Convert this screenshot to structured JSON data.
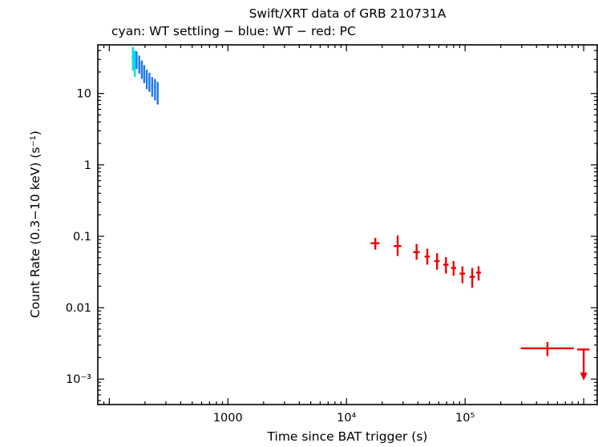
{
  "figure": {
    "background": "#ffffff"
  },
  "chart_data": {
    "type": "scatter",
    "title": "Swift/XRT data of GRB 210731A",
    "subtitle": "cyan: WT settling − blue: WT − red: PC",
    "xlabel": "Time since BAT trigger (s)",
    "ylabel": "Count Rate (0.3−10 keV) (s⁻¹)",
    "xscale": "log",
    "yscale": "log",
    "xlim": [
      80,
      1300000
    ],
    "ylim": [
      0.00044,
      48
    ],
    "grid": false,
    "frame_color": "#000000",
    "x_ticks": [
      {
        "value": 1000,
        "label": "1000"
      },
      {
        "value": 10000,
        "label": "10⁴"
      },
      {
        "value": 100000,
        "label": "10⁵"
      }
    ],
    "y_ticks": [
      {
        "value": 10,
        "label": "10"
      },
      {
        "value": 1,
        "label": "1"
      },
      {
        "value": 0.1,
        "label": "0.1"
      },
      {
        "value": 0.01,
        "label": "0.01"
      },
      {
        "value": 0.001,
        "label": "10⁻³"
      }
    ],
    "series": [
      {
        "name": "WT settling",
        "color": "#00dcf0",
        "points": [
          {
            "t": 158,
            "t_err": [
              4,
              4
            ],
            "rate": 32,
            "rate_err": [
              11,
              13
            ]
          },
          {
            "t": 164,
            "t_err": [
              4,
              4
            ],
            "rate": 28,
            "rate_err": [
              11,
              12
            ]
          }
        ]
      },
      {
        "name": "WT",
        "color": "#1e78e8",
        "points": [
          {
            "t": 170,
            "t_err": [
              3,
              3
            ],
            "rate": 30,
            "rate_err": [
              8,
              9
            ]
          },
          {
            "t": 179,
            "t_err": [
              3,
              3
            ],
            "rate": 26,
            "rate_err": [
              7,
              8
            ]
          },
          {
            "t": 188,
            "t_err": [
              3,
              3
            ],
            "rate": 22,
            "rate_err": [
              6,
              7
            ]
          },
          {
            "t": 197,
            "t_err": [
              3,
              3
            ],
            "rate": 19,
            "rate_err": [
              5,
              6
            ]
          },
          {
            "t": 207,
            "t_err": [
              4,
              4
            ],
            "rate": 16.5,
            "rate_err": [
              5,
              5
            ]
          },
          {
            "t": 218,
            "t_err": [
              4,
              4
            ],
            "rate": 14.5,
            "rate_err": [
              4,
              5
            ]
          },
          {
            "t": 230,
            "t_err": [
              5,
              5
            ],
            "rate": 13,
            "rate_err": [
              4,
              4
            ]
          },
          {
            "t": 243,
            "t_err": [
              5,
              5
            ],
            "rate": 12,
            "rate_err": [
              4,
              4
            ]
          },
          {
            "t": 256,
            "t_err": [
              5,
              5
            ],
            "rate": 10.5,
            "rate_err": [
              3.5,
              4
            ]
          }
        ]
      },
      {
        "name": "PC",
        "color": "#ee0000",
        "points": [
          {
            "t": 17500,
            "t_err": [
              1500,
              1500
            ],
            "rate": 0.08,
            "rate_err": [
              0.015,
              0.015
            ]
          },
          {
            "t": 27000,
            "t_err": [
              2000,
              2000
            ],
            "rate": 0.073,
            "rate_err": [
              0.02,
              0.03
            ]
          },
          {
            "t": 39000,
            "t_err": [
              2500,
              2500
            ],
            "rate": 0.06,
            "rate_err": [
              0.013,
              0.018
            ]
          },
          {
            "t": 48000,
            "t_err": [
              2500,
              2500
            ],
            "rate": 0.052,
            "rate_err": [
              0.012,
              0.015
            ]
          },
          {
            "t": 58000,
            "t_err": [
              3000,
              3000
            ],
            "rate": 0.045,
            "rate_err": [
              0.011,
              0.013
            ]
          },
          {
            "t": 69000,
            "t_err": [
              3500,
              3500
            ],
            "rate": 0.04,
            "rate_err": [
              0.01,
              0.011
            ]
          },
          {
            "t": 80000,
            "t_err": [
              4000,
              4000
            ],
            "rate": 0.036,
            "rate_err": [
              0.008,
              0.009
            ]
          },
          {
            "t": 95000,
            "t_err": [
              5000,
              5000
            ],
            "rate": 0.03,
            "rate_err": [
              0.008,
              0.008
            ]
          },
          {
            "t": 115000,
            "t_err": [
              6000,
              6000
            ],
            "rate": 0.027,
            "rate_err": [
              0.008,
              0.009
            ]
          },
          {
            "t": 130000,
            "t_err": [
              6000,
              6000
            ],
            "rate": 0.031,
            "rate_err": [
              0.007,
              0.007
            ]
          },
          {
            "t": 495000,
            "t_err": [
              200000,
              330000
            ],
            "rate": 0.0027,
            "rate_err": [
              0.0006,
              0.0006
            ]
          }
        ],
        "upper_limits": [
          {
            "t": 1000000,
            "t_err": [
              120000,
              120000
            ],
            "rate": 0.0026,
            "arrow_to": 0.0012
          }
        ]
      }
    ]
  }
}
